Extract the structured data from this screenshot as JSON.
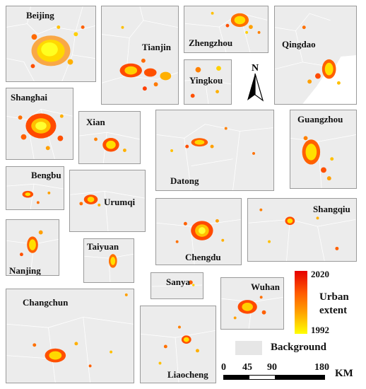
{
  "panels": [
    {
      "id": "beijing",
      "label": "Beijing"
    },
    {
      "id": "tianjin",
      "label": "Tianjin"
    },
    {
      "id": "zhengzhou",
      "label": "Zhengzhou"
    },
    {
      "id": "qingdao",
      "label": "Qingdao"
    },
    {
      "id": "yingkou",
      "label": "Yingkou"
    },
    {
      "id": "shanghai",
      "label": "Shanghai"
    },
    {
      "id": "xian",
      "label": "Xian"
    },
    {
      "id": "datong",
      "label": "Datong"
    },
    {
      "id": "guangzhou",
      "label": "Guangzhou"
    },
    {
      "id": "bengbu",
      "label": "Bengbu"
    },
    {
      "id": "urumqi",
      "label": "Urumqi"
    },
    {
      "id": "shangqiu",
      "label": "Shangqiu"
    },
    {
      "id": "nanjing",
      "label": "Nanjing"
    },
    {
      "id": "taiyuan",
      "label": "Taiyuan"
    },
    {
      "id": "chengdu",
      "label": "Chengdu"
    },
    {
      "id": "sanya",
      "label": "Sanya"
    },
    {
      "id": "wuhan",
      "label": "Wuhan"
    },
    {
      "id": "changchun",
      "label": "Changchun"
    },
    {
      "id": "liaocheng",
      "label": "Liaocheng"
    }
  ],
  "north_label": "N",
  "legend": {
    "top_year": "2020",
    "bottom_year": "1992",
    "title_line1": "Urban",
    "title_line2": "extent",
    "background_label": "Background",
    "colors": {
      "newest": "#e60000",
      "oldest": "#ffff00",
      "background": "#e6e6e6"
    }
  },
  "scale_bar": {
    "ticks": [
      "0",
      "45",
      "90",
      "180"
    ],
    "unit": "KM"
  }
}
